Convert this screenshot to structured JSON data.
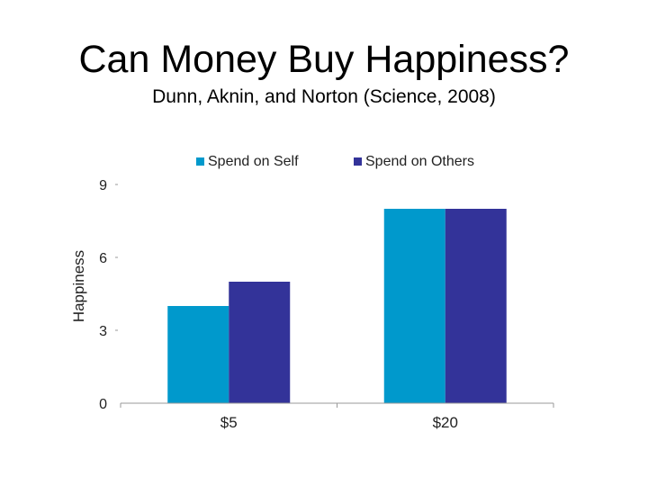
{
  "slide": {
    "title": "Can Money Buy Happiness?",
    "subtitle": "Dunn, Aknin, and Norton (Science, 2008)"
  },
  "chart_data": {
    "type": "bar",
    "categories": [
      "$5",
      "$20"
    ],
    "series": [
      {
        "name": "Spend on Self",
        "values": [
          4,
          8
        ],
        "color": "#0099cc"
      },
      {
        "name": "Spend on Others",
        "values": [
          5,
          8
        ],
        "color": "#333399"
      }
    ],
    "xlabel": "",
    "ylabel": "Happiness",
    "ylim": [
      0,
      9
    ],
    "yticks": [
      0,
      3,
      6,
      9
    ],
    "grid": false,
    "legend_position": "top"
  }
}
